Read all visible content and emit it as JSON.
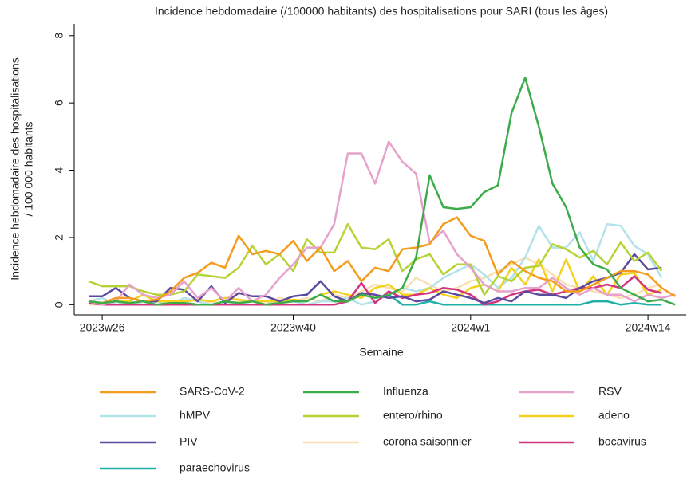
{
  "chart_data": {
    "type": "line",
    "title": "Incidence hebdomadaire (/100000 habitants) des hospitalisations pour SARI (tous les âges)",
    "x_label": "Semaine",
    "y_label": [
      "Incidence hebdomadaire des hospitalisations",
      "/ 100 000 habitants"
    ],
    "categories": [
      null,
      "2023w26",
      null,
      null,
      null,
      null,
      null,
      null,
      null,
      null,
      null,
      null,
      null,
      null,
      null,
      "2023w40",
      null,
      null,
      null,
      null,
      null,
      null,
      null,
      null,
      null,
      null,
      null,
      null,
      "2024w1",
      null,
      null,
      null,
      null,
      null,
      null,
      null,
      null,
      null,
      null,
      null,
      null,
      "2024w14",
      null,
      null
    ],
    "ylim": [
      -0.3,
      8.35
    ],
    "yticks": [
      0,
      2,
      4,
      6,
      8
    ],
    "grid": false,
    "series": [
      {
        "name": "SARS-CoV-2",
        "color": "#f39c1e",
        "values": [
          0.1,
          0.05,
          0.2,
          0.2,
          0.1,
          0.15,
          0.4,
          0.8,
          0.95,
          1.25,
          1.1,
          2.05,
          1.5,
          1.6,
          1.5,
          1.9,
          1.3,
          1.7,
          1.0,
          1.3,
          0.7,
          1.1,
          1.0,
          1.65,
          1.7,
          1.8,
          2.4,
          2.6,
          2.05,
          1.9,
          0.9,
          1.3,
          1.0,
          0.8,
          0.7,
          0.4,
          0.4,
          0.6,
          0.8,
          1.0,
          1.0,
          0.9,
          0.5,
          0.25
        ]
      },
      {
        "name": "Influenza",
        "color": "#3cab48",
        "values": [
          0.1,
          0.05,
          0.1,
          0.05,
          0.1,
          0,
          0.05,
          0.05,
          0,
          0,
          0.1,
          0.05,
          0.1,
          0,
          0.05,
          0.1,
          0.1,
          0.3,
          0.1,
          0.1,
          0.3,
          0.2,
          0.3,
          0.5,
          1.4,
          3.85,
          2.9,
          2.85,
          2.9,
          3.35,
          3.55,
          5.7,
          6.75,
          5.3,
          3.6,
          2.9,
          1.7,
          1.2,
          1.05,
          0.5,
          0.3,
          0.1,
          0.15,
          0
        ]
      },
      {
        "name": "RSV",
        "color": "#e6a2cc",
        "values": [
          0.1,
          0,
          0.1,
          0.6,
          0.3,
          0.2,
          0.3,
          0.7,
          0.2,
          0.5,
          0.1,
          0.5,
          0.1,
          0.3,
          0.8,
          1.2,
          1.7,
          1.7,
          2.4,
          4.5,
          4.5,
          3.6,
          4.85,
          4.25,
          3.9,
          1.85,
          2.2,
          1.5,
          1.1,
          0.6,
          0.4,
          0.4,
          0.5,
          0.5,
          0.8,
          0.5,
          0.3,
          0.5,
          0.3,
          0.3,
          0.1,
          0.3,
          0.2,
          0.3
        ]
      },
      {
        "name": "hMPV",
        "color": "#b3e2ea",
        "values": [
          0.1,
          0.2,
          0,
          0.1,
          0,
          0.1,
          0,
          0.2,
          0.1,
          0,
          0.1,
          0,
          0.1,
          0,
          0.1,
          0.1,
          0,
          0.1,
          0.1,
          0.2,
          0,
          0.1,
          0.3,
          0.5,
          0.4,
          0.5,
          0.8,
          1.0,
          1.2,
          0.9,
          0.5,
          0.8,
          1.4,
          2.35,
          1.7,
          1.7,
          2.15,
          1.3,
          2.4,
          2.35,
          1.75,
          1.5,
          0.8,
          null
        ]
      },
      {
        "name": "entero/rhino",
        "color": "#b5d334",
        "values": [
          0.7,
          0.55,
          0.55,
          0.55,
          0.4,
          0.3,
          0.3,
          0.4,
          0.9,
          0.85,
          0.8,
          1.1,
          1.75,
          1.2,
          1.5,
          1.0,
          1.95,
          1.55,
          1.55,
          2.4,
          1.7,
          1.65,
          1.95,
          1.0,
          1.35,
          1.5,
          0.9,
          1.2,
          1.2,
          0.3,
          0.85,
          0.7,
          1.1,
          1.15,
          1.8,
          1.65,
          1.4,
          1.6,
          1.2,
          1.85,
          1.3,
          1.55,
          1.0,
          null
        ]
      },
      {
        "name": "adeno",
        "color": "#f5d11e",
        "values": [
          0.1,
          0.05,
          0.1,
          0.1,
          0.3,
          0.1,
          0.1,
          0.1,
          0.15,
          0.1,
          0.2,
          0.15,
          0.1,
          0.1,
          0.1,
          0.15,
          0.1,
          0.3,
          0.4,
          0.3,
          0.2,
          0.5,
          0.6,
          0.3,
          0.3,
          0.5,
          0.3,
          0.2,
          0.5,
          0.6,
          0.4,
          1.1,
          0.6,
          1.35,
          0.4,
          1.35,
          0.4,
          0.85,
          0.3,
          0.9,
          0.95,
          0.3,
          0.45,
          null
        ]
      },
      {
        "name": "PIV",
        "color": "#5b4a9e",
        "values": [
          0.25,
          0.25,
          0.5,
          0.2,
          0.1,
          0.1,
          0.5,
          0.45,
          0.1,
          0.55,
          0.05,
          0.35,
          0.25,
          0.25,
          0.1,
          0.25,
          0.3,
          0.7,
          0.25,
          0.1,
          0.35,
          0.3,
          0.2,
          0.25,
          0.1,
          0.15,
          0.4,
          0.3,
          0.2,
          0.05,
          0.2,
          0.1,
          0.4,
          0.3,
          0.3,
          0.2,
          0.5,
          0.7,
          0.8,
          0.95,
          1.5,
          1.05,
          1.1,
          null
        ]
      },
      {
        "name": "corona saisonnier",
        "color": "#f8e0b4",
        "values": [
          0,
          0,
          0,
          0,
          0,
          0,
          0.1,
          0.1,
          0,
          0.1,
          0,
          0.1,
          0.1,
          0,
          0.2,
          0.1,
          0.2,
          0.1,
          0.3,
          0.2,
          0.4,
          0.6,
          0.5,
          0.4,
          0.8,
          0.6,
          0.4,
          0.5,
          0.7,
          0.8,
          1.0,
          1.2,
          1.4,
          1.2,
          0.9,
          0.6,
          0.5,
          0.4,
          0.3,
          0.2,
          0.3,
          0.5,
          0.6,
          null
        ]
      },
      {
        "name": "bocavirus",
        "color": "#d6337f",
        "values": [
          0.05,
          0,
          0,
          0,
          0,
          0,
          0,
          0,
          0,
          0,
          0,
          0,
          0,
          0,
          0,
          0,
          0,
          0,
          0,
          0.1,
          0.65,
          0.05,
          0.4,
          0.2,
          0.3,
          0.35,
          0.5,
          0.45,
          0.3,
          0,
          0.1,
          0.3,
          0.4,
          0.45,
          0.3,
          0.4,
          0.5,
          0.5,
          0.6,
          0.5,
          0.85,
          0.45,
          0.35,
          null
        ]
      },
      {
        "name": "paraechovirus",
        "color": "#1fb0a6",
        "values": [
          null,
          null,
          null,
          null,
          null,
          null,
          null,
          null,
          null,
          null,
          null,
          null,
          null,
          null,
          null,
          null,
          null,
          null,
          null,
          null,
          null,
          0.2,
          0.3,
          0,
          0,
          0.1,
          0,
          0,
          0,
          0,
          0,
          0,
          0,
          0,
          0,
          0,
          0,
          0.1,
          0.1,
          0,
          0.05,
          0,
          0,
          null
        ]
      }
    ]
  }
}
